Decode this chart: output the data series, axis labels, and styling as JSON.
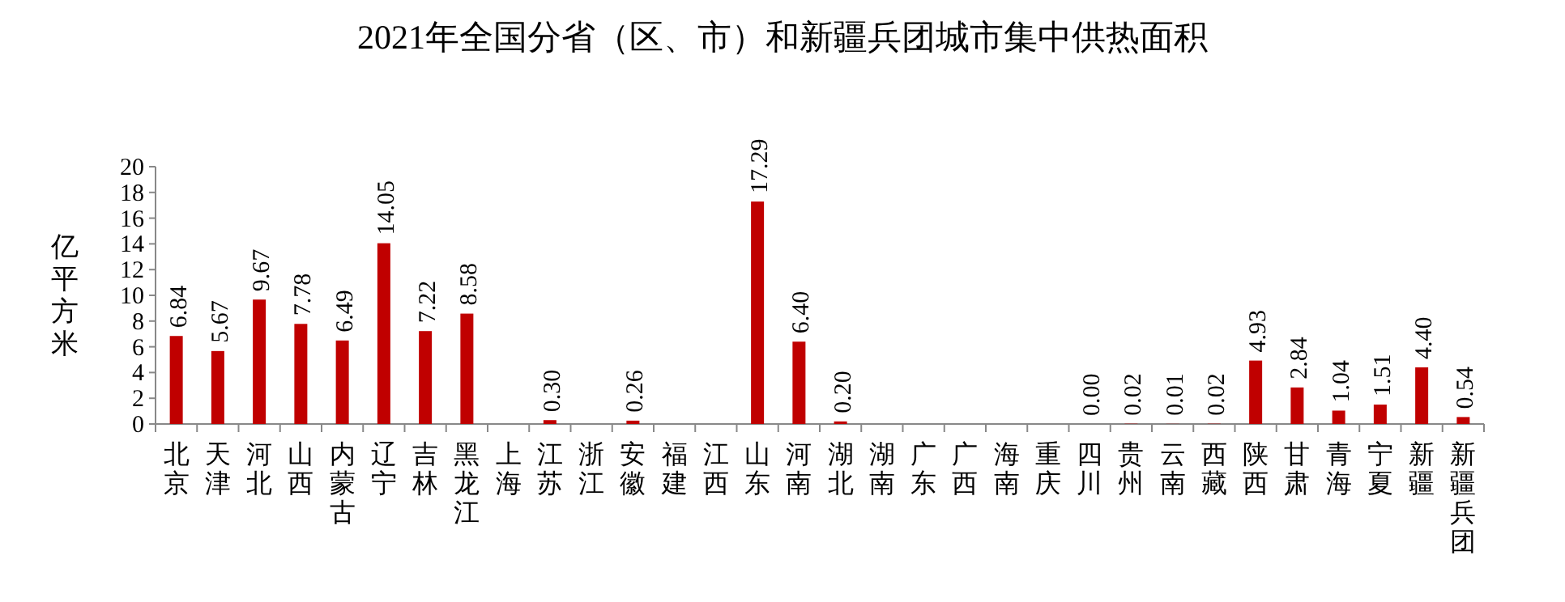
{
  "chart_data": {
    "type": "bar",
    "title": "2021年全国分省（区、市）和新疆兵团城市集中供热面积",
    "ylabel": "亿平方米",
    "categories": [
      "北京",
      "天津",
      "河北",
      "山西",
      "内蒙古",
      "辽宁",
      "吉林",
      "黑龙江",
      "上海",
      "江苏",
      "浙江",
      "安徽",
      "福建",
      "江西",
      "山东",
      "河南",
      "湖北",
      "湖南",
      "广东",
      "广西",
      "海南",
      "重庆",
      "四川",
      "贵州",
      "云南",
      "西藏",
      "陕西",
      "甘肃",
      "青海",
      "宁夏",
      "新疆",
      "新疆兵团"
    ],
    "values": [
      6.84,
      5.67,
      9.67,
      7.78,
      6.49,
      14.05,
      7.22,
      8.58,
      null,
      0.3,
      null,
      0.26,
      null,
      null,
      17.29,
      6.4,
      0.2,
      null,
      null,
      null,
      null,
      null,
      0.0,
      0.02,
      0.01,
      0.02,
      4.93,
      2.84,
      1.04,
      1.51,
      4.4,
      0.54
    ],
    "value_labels": [
      "6.84",
      "5.67",
      "9.67",
      "7.78",
      "6.49",
      "14.05",
      "7.22",
      "8.58",
      null,
      "0.30",
      null,
      "0.26",
      null,
      null,
      "17.29",
      "6.40",
      "0.20",
      null,
      null,
      null,
      null,
      null,
      "0.00",
      "0.02",
      "0.01",
      "0.02",
      "4.93",
      "2.84",
      "1.04",
      "1.51",
      "4.40",
      "0.54"
    ],
    "color": "#c00000",
    "ylim": [
      0,
      20
    ],
    "yticks": [
      0,
      2,
      4,
      6,
      8,
      10,
      12,
      14,
      16,
      18,
      20
    ]
  }
}
